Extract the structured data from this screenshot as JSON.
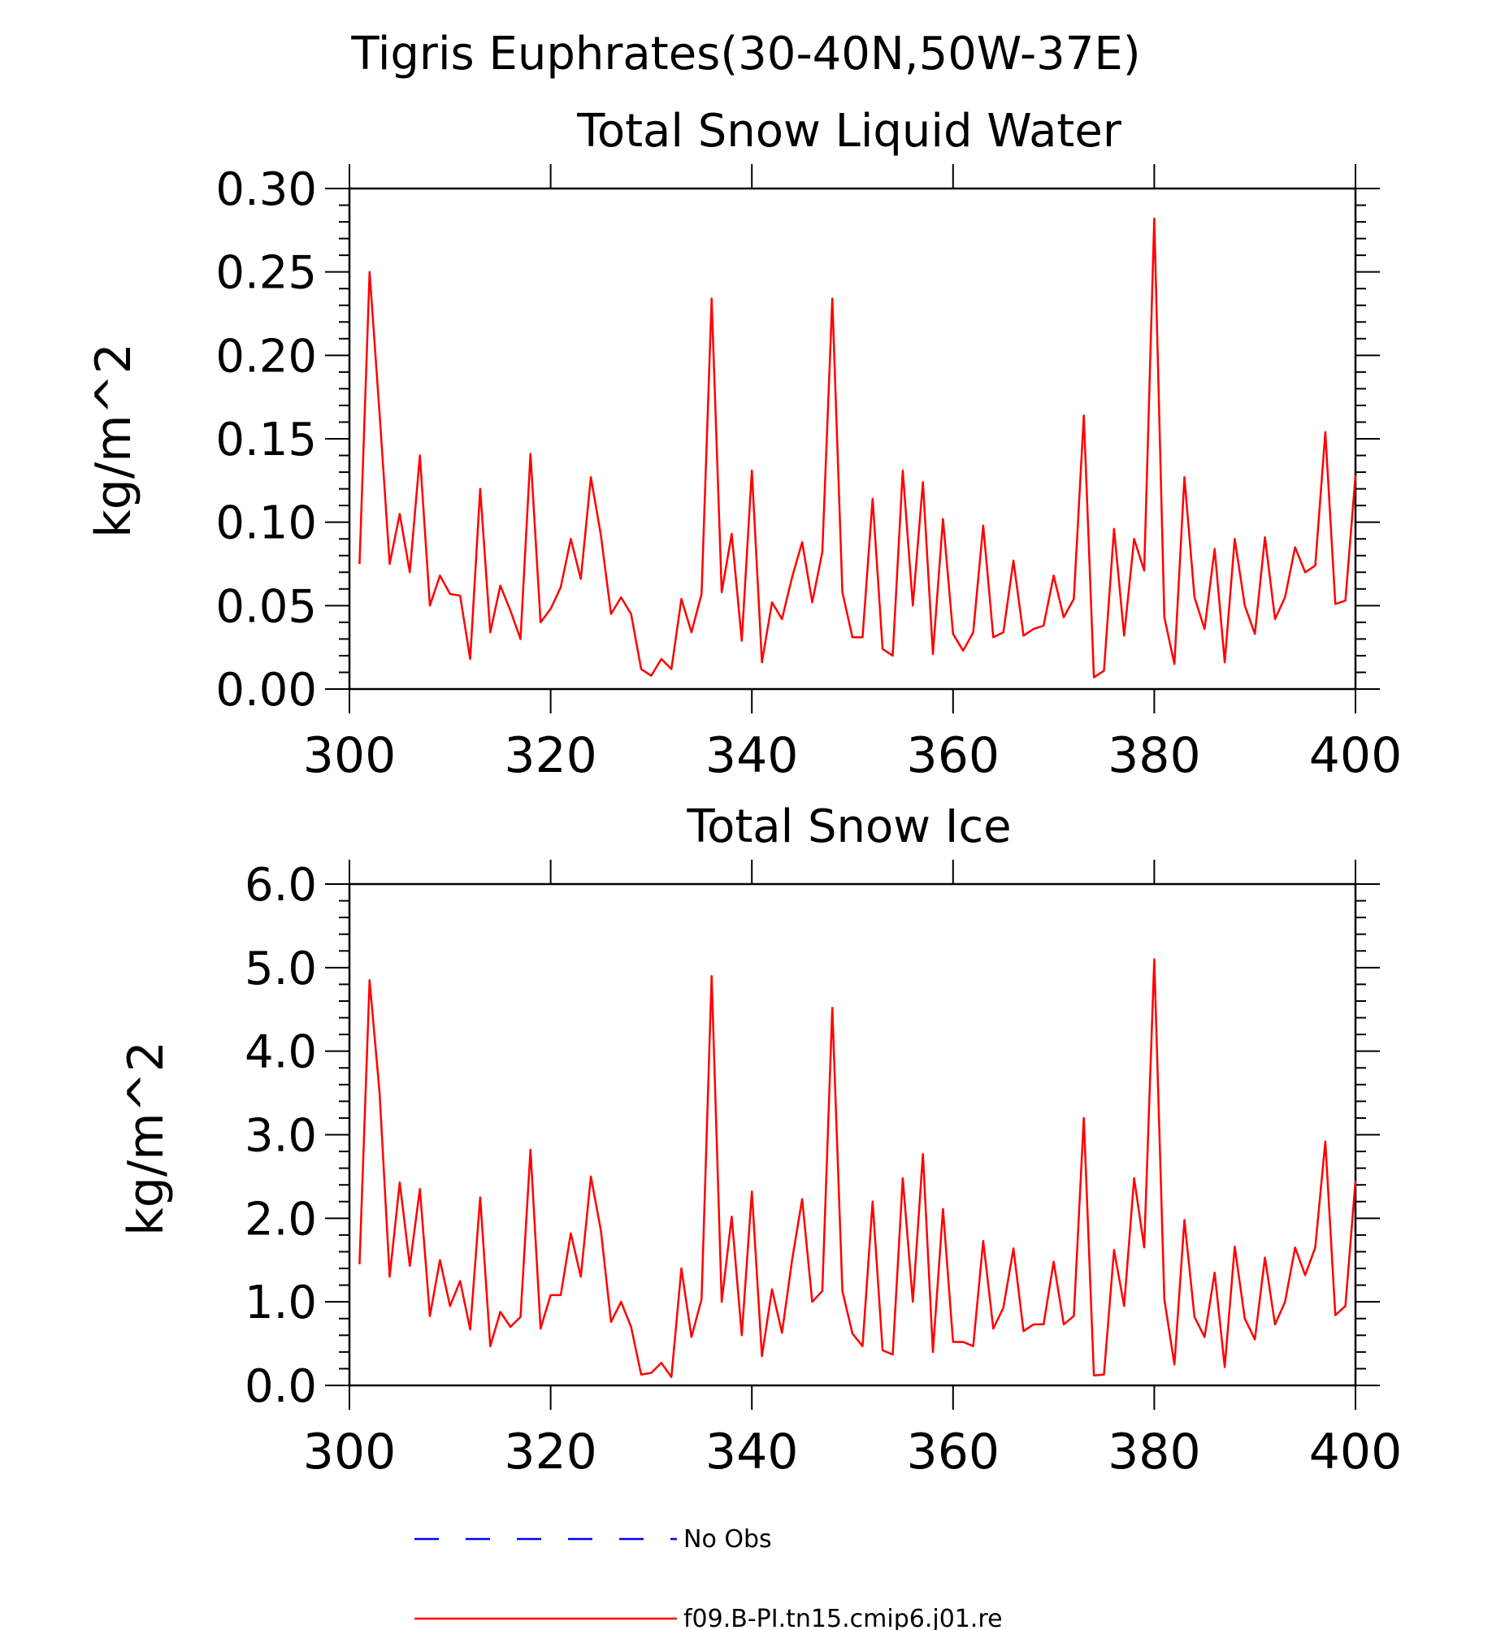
{
  "figure": {
    "title": "Tigris Euphrates(30-40N,50W-37E)"
  },
  "chart_data": [
    {
      "type": "line",
      "title": "Total Snow Liquid Water",
      "xlabel": "",
      "ylabel": "kg/m^2",
      "xlim": [
        300,
        400
      ],
      "ylim": [
        0,
        0.3
      ],
      "xticks": [
        "300",
        "320",
        "340",
        "360",
        "380",
        "400"
      ],
      "yticks": [
        "0.00",
        "0.05",
        "0.10",
        "0.15",
        "0.20",
        "0.25",
        "0.30"
      ],
      "x_start": 301,
      "series": [
        {
          "name": "f09.B-PI.tn15.cmip6.j01.re",
          "color": "#ff0000",
          "values": [
            0.075,
            0.25,
            0.165,
            0.075,
            0.105,
            0.07,
            0.14,
            0.05,
            0.068,
            0.057,
            0.056,
            0.018,
            0.12,
            0.034,
            0.062,
            0.047,
            0.03,
            0.141,
            0.04,
            0.048,
            0.061,
            0.09,
            0.066,
            0.127,
            0.092,
            0.045,
            0.055,
            0.045,
            0.012,
            0.008,
            0.018,
            0.012,
            0.054,
            0.034,
            0.057,
            0.234,
            0.058,
            0.093,
            0.029,
            0.131,
            0.016,
            0.052,
            0.042,
            0.067,
            0.088,
            0.052,
            0.082,
            0.234,
            0.058,
            0.031,
            0.031,
            0.114,
            0.024,
            0.02,
            0.131,
            0.05,
            0.124,
            0.021,
            0.102,
            0.033,
            0.023,
            0.034,
            0.098,
            0.031,
            0.034,
            0.077,
            0.032,
            0.036,
            0.038,
            0.068,
            0.043,
            0.054,
            0.164,
            0.007,
            0.011,
            0.096,
            0.032,
            0.09,
            0.071,
            0.282,
            0.043,
            0.015,
            0.127,
            0.055,
            0.036,
            0.084,
            0.016,
            0.09,
            0.05,
            0.033,
            0.091,
            0.042,
            0.055,
            0.085,
            0.07,
            0.074,
            0.154,
            0.051,
            0.053,
            0.128
          ]
        }
      ]
    },
    {
      "type": "line",
      "title": "Total Snow Ice",
      "xlabel": "",
      "ylabel": "kg/m^2",
      "xlim": [
        300,
        400
      ],
      "ylim": [
        0,
        6
      ],
      "xticks": [
        "300",
        "320",
        "340",
        "360",
        "380",
        "400"
      ],
      "yticks": [
        "0.0",
        "1.0",
        "2.0",
        "3.0",
        "4.0",
        "5.0",
        "6.0"
      ],
      "x_start": 301,
      "series": [
        {
          "name": "f09.B-PI.tn15.cmip6.j01.re",
          "color": "#ff0000",
          "values": [
            1.45,
            4.85,
            3.5,
            1.3,
            2.43,
            1.43,
            2.35,
            0.83,
            1.5,
            0.95,
            1.25,
            0.67,
            2.25,
            0.47,
            0.88,
            0.7,
            0.82,
            2.82,
            0.68,
            1.08,
            1.08,
            1.82,
            1.3,
            2.5,
            1.85,
            0.76,
            1.0,
            0.7,
            0.13,
            0.15,
            0.27,
            0.1,
            1.4,
            0.58,
            1.03,
            4.9,
            1.0,
            2.02,
            0.6,
            2.32,
            0.35,
            1.15,
            0.63,
            1.5,
            2.23,
            1.0,
            1.13,
            4.52,
            1.13,
            0.62,
            0.47,
            2.2,
            0.42,
            0.37,
            2.48,
            1.0,
            2.77,
            0.4,
            2.11,
            0.52,
            0.52,
            0.47,
            1.73,
            0.68,
            0.93,
            1.64,
            0.65,
            0.73,
            0.73,
            1.48,
            0.73,
            0.83,
            3.2,
            0.12,
            0.13,
            1.62,
            0.95,
            2.48,
            1.65,
            5.1,
            1.03,
            0.25,
            1.98,
            0.82,
            0.58,
            1.35,
            0.22,
            1.66,
            0.8,
            0.55,
            1.53,
            0.73,
            1.0,
            1.65,
            1.32,
            1.65,
            2.92,
            0.84,
            0.95,
            2.45
          ]
        }
      ]
    }
  ],
  "legend": {
    "items": [
      {
        "label": "No Obs",
        "color": "#0000ff",
        "dashed": true
      },
      {
        "label": "f09.B-PI.tn15.cmip6.j01.re",
        "color": "#ff0000",
        "dashed": false
      }
    ]
  }
}
